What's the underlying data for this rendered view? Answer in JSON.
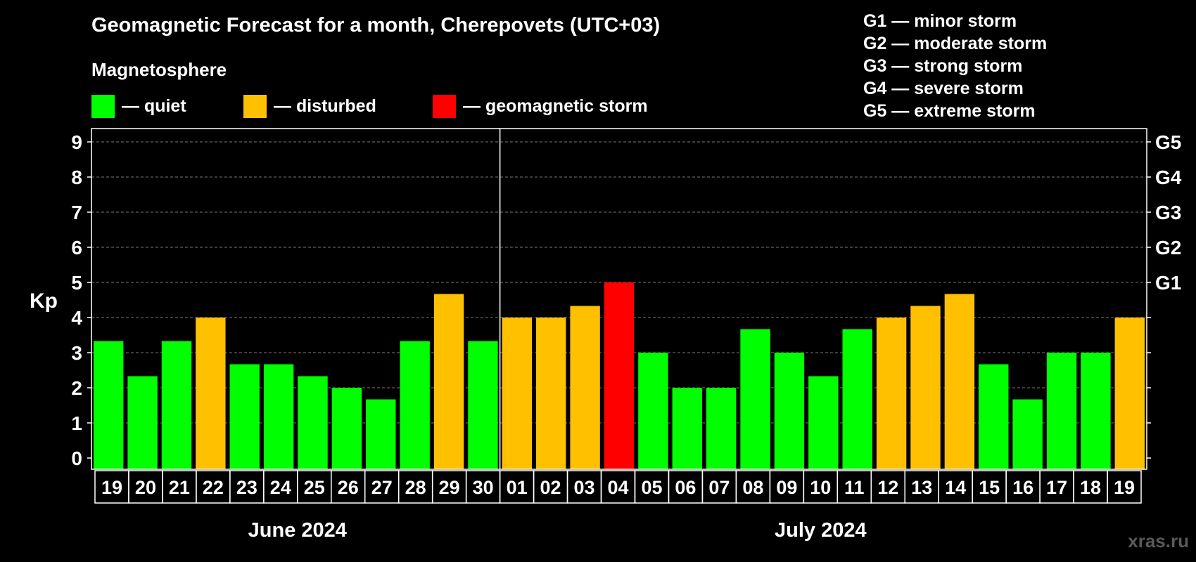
{
  "title": "Geomagnetic Forecast for a month, Cherepovets (UTC+03)",
  "legend": {
    "heading": "Magnetosphere",
    "items": [
      {
        "label": "— quiet",
        "color": "#00ff00"
      },
      {
        "label": "— disturbed",
        "color": "#ffc000"
      },
      {
        "label": "— geomagnetic storm",
        "color": "#ff0000"
      }
    ]
  },
  "storm_levels": [
    "G1 — minor storm",
    "G2 — moderate storm",
    "G3 — strong storm",
    "G4 — severe storm",
    "G5 — extreme storm"
  ],
  "watermark": "xras.ru",
  "chart_data": {
    "type": "bar",
    "ylabel": "Kp",
    "ylim": [
      0,
      9
    ],
    "yticks": [
      "0",
      "1",
      "2",
      "3",
      "4",
      "5",
      "6",
      "7",
      "8",
      "9"
    ],
    "right_axis_labels": [
      {
        "kp": 5,
        "label": "G1"
      },
      {
        "kp": 6,
        "label": "G2"
      },
      {
        "kp": 7,
        "label": "G3"
      },
      {
        "kp": 8,
        "label": "G4"
      },
      {
        "kp": 9,
        "label": "G5"
      }
    ],
    "grid": "dashed horizontal",
    "months": [
      {
        "label": "June 2024",
        "days": 12
      },
      {
        "label": "July 2024",
        "days": 19
      }
    ],
    "categories": [
      "19",
      "20",
      "21",
      "22",
      "23",
      "24",
      "25",
      "26",
      "27",
      "28",
      "29",
      "30",
      "01",
      "02",
      "03",
      "04",
      "05",
      "06",
      "07",
      "08",
      "09",
      "10",
      "11",
      "12",
      "13",
      "14",
      "15",
      "16",
      "17",
      "18",
      "19"
    ],
    "values": [
      3.33,
      2.33,
      3.33,
      4,
      2.67,
      2.67,
      2.33,
      2,
      1.67,
      3.33,
      4.67,
      3.33,
      4,
      4,
      4.33,
      5,
      3,
      2,
      2,
      3.67,
      3,
      2.33,
      3.67,
      4,
      4.33,
      4.67,
      2.67,
      1.67,
      3,
      3,
      4
    ],
    "status": [
      "quiet",
      "quiet",
      "quiet",
      "disturbed",
      "quiet",
      "quiet",
      "quiet",
      "quiet",
      "quiet",
      "quiet",
      "disturbed",
      "quiet",
      "disturbed",
      "disturbed",
      "disturbed",
      "storm",
      "quiet",
      "quiet",
      "quiet",
      "quiet",
      "quiet",
      "quiet",
      "quiet",
      "disturbed",
      "disturbed",
      "disturbed",
      "quiet",
      "quiet",
      "quiet",
      "quiet",
      "disturbed"
    ],
    "colors": {
      "quiet": "#00ff00",
      "disturbed": "#ffc000",
      "storm": "#ff0000"
    }
  }
}
